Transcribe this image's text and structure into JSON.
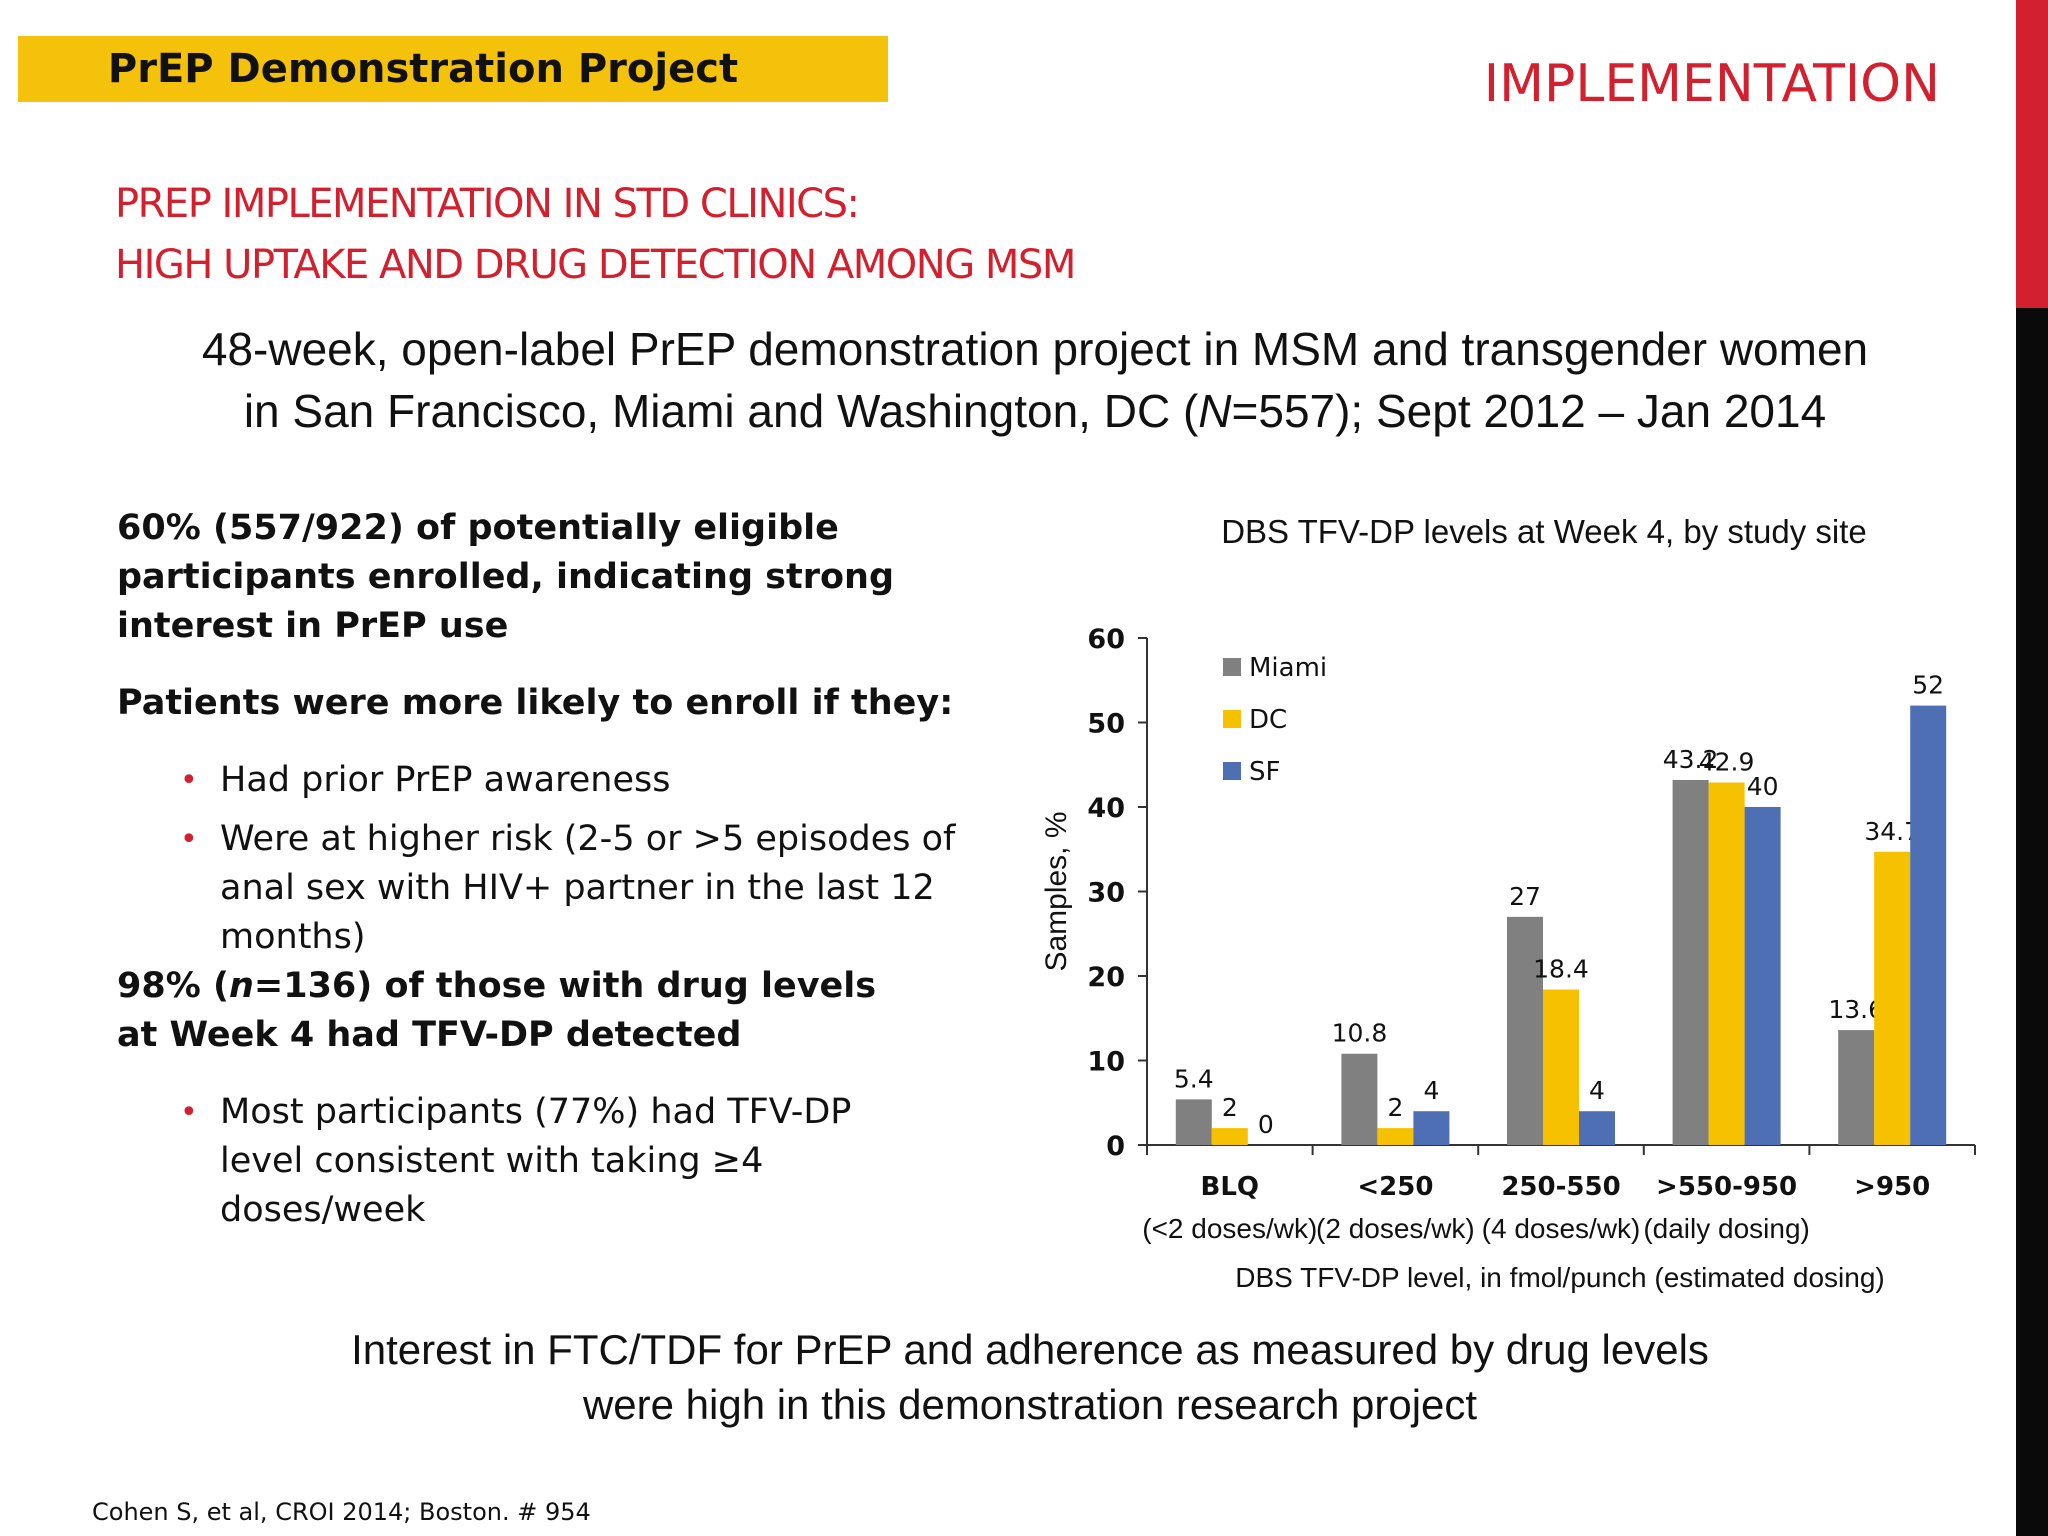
{
  "header": {
    "banner_title": "PrEP Demonstration Project",
    "section_label": "IMPLEMENTATION"
  },
  "title": {
    "line1": "PREP IMPLEMENTATION IN STD CLINICS:",
    "line2": "HIGH UPTAKE AND DRUG DETECTION AMONG MSM"
  },
  "summary": {
    "line1": "48-week, open-label PrEP demonstration project in MSM and transgender women",
    "line2_pre": "in San Francisco, Miami and Washington, DC (",
    "line2_n": "N",
    "line2_post": "=557); Sept 2012 – Jan 2014"
  },
  "left": {
    "p1": "60% (557/922) of potentially eligible participants enrolled, indicating strong interest in PrEP use",
    "p2": "Patients were more likely to enroll if they:",
    "bullets1": [
      "Had prior PrEP awareness",
      "Were at higher risk (2-5 or >5 episodes of anal sex with HIV+ partner in the last 12 months)"
    ],
    "p3_pre": "98% (",
    "p3_n": "n",
    "p3_post": "=136) of those with drug levels at Week 4 had TFV-DP detected",
    "bullets2": [
      "Most participants (77%) had TFV-DP level consistent with taking ≥4 doses/week"
    ]
  },
  "chart_data": {
    "type": "bar",
    "title": "DBS TFV-DP levels at Week 4, by study site",
    "ylabel": "Samples, %",
    "xlabel": "DBS TFV-DP level, in fmol/punch (estimated dosing)",
    "ylim": [
      0,
      60
    ],
    "yticks": [
      0,
      10,
      20,
      30,
      40,
      50,
      60
    ],
    "categories": [
      "BLQ",
      "<250",
      "250-550",
      ">550-950",
      ">950"
    ],
    "category_sublabels": [
      "(<2 doses/wk)",
      "(2 doses/wk)",
      "(4 doses/wk)",
      "(daily dosing)",
      ""
    ],
    "series": [
      {
        "name": "Miami",
        "color": "#808080",
        "values": [
          5.4,
          10.8,
          27,
          43.2,
          13.6
        ]
      },
      {
        "name": "DC",
        "color": "#f5c100",
        "values": [
          2,
          2,
          18.4,
          42.9,
          34.7
        ]
      },
      {
        "name": "SF",
        "color": "#4f6fb5",
        "values": [
          0,
          4,
          4,
          40,
          52
        ]
      }
    ],
    "data_labels": [
      [
        "5.4",
        "10.8",
        "27",
        "43.2",
        "13.6"
      ],
      [
        "2",
        "2",
        "18.4",
        "42.9",
        "34.7"
      ],
      [
        "0",
        "4",
        "4",
        "40",
        "52"
      ]
    ],
    "legend_position": "top-left",
    "grid": false
  },
  "conclusion": {
    "line1": "Interest in FTC/TDF for PrEP and adherence as measured by drug levels",
    "line2": "were high in this demonstration research project"
  },
  "citation": "Cohen S, et al, CROI 2014; Boston. # 954"
}
